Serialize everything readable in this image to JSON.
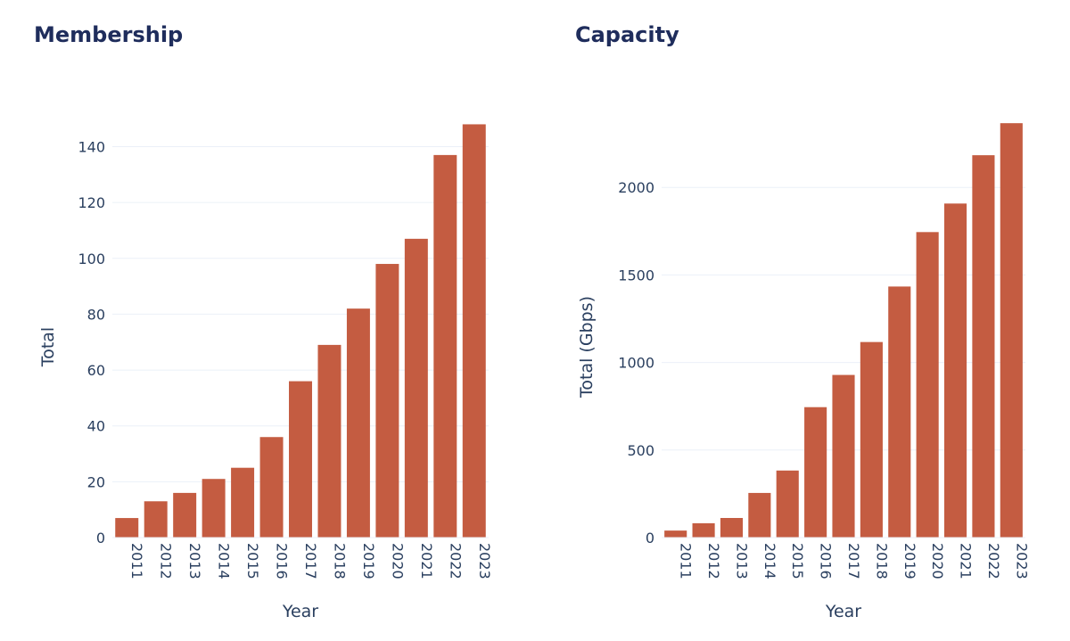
{
  "chart_data": [
    {
      "type": "bar",
      "title": "Membership",
      "xlabel": "Year",
      "ylabel": "Total",
      "categories": [
        "2011",
        "2012",
        "2013",
        "2014",
        "2015",
        "2016",
        "2017",
        "2018",
        "2019",
        "2020",
        "2021",
        "2022",
        "2023"
      ],
      "values": [
        7,
        13,
        16,
        21,
        25,
        36,
        56,
        69,
        82,
        98,
        107,
        137,
        148
      ],
      "yticks": [
        0,
        20,
        40,
        60,
        80,
        100,
        120,
        140
      ],
      "ylim": [
        0,
        155.8
      ],
      "grid": true,
      "color": "#c45c41"
    },
    {
      "type": "bar",
      "title": "Capacity",
      "xlabel": "Year",
      "ylabel": "Total (Gbps)",
      "categories": [
        "2011",
        "2012",
        "2013",
        "2014",
        "2015",
        "2016",
        "2017",
        "2018",
        "2019",
        "2020",
        "2021",
        "2022",
        "2023"
      ],
      "values": [
        40,
        82,
        112,
        255,
        383,
        745,
        929,
        1117,
        1434,
        1745,
        1908,
        2184,
        2367
      ],
      "yticks": [
        0,
        500,
        1000,
        1500,
        2000
      ],
      "ylim": [
        0,
        2485
      ],
      "grid": true,
      "color": "#c45c41"
    }
  ]
}
